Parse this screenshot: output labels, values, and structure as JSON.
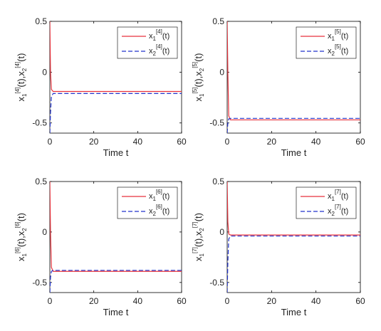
{
  "colors": {
    "x1": "#e8323c",
    "x2": "#2233cc",
    "axis": "#000000",
    "background": "#ffffff"
  },
  "chart_data": [
    {
      "type": "line",
      "agent": "4",
      "xlabel": "Time t",
      "ylabel": {
        "base": "x",
        "sub1": "1",
        "sub2": "2",
        "sup": "[4]",
        "arg": "(t)"
      },
      "xlim": [
        0,
        60
      ],
      "ylim": [
        -0.6,
        0.5
      ],
      "xticks": [
        "0",
        "20",
        "40",
        "60"
      ],
      "yticks": [
        "0.5",
        "0",
        "-0.5"
      ],
      "legend_position": "top-right",
      "series": [
        {
          "key": "x1",
          "style": "solid",
          "legend": {
            "base": "x",
            "sub": "1",
            "sup": "[4]",
            "arg": "(t)"
          },
          "points": [
            [
              0,
              0.5
            ],
            [
              0.3,
              0.0
            ],
            [
              0.7,
              -0.17
            ],
            [
              1.5,
              -0.19
            ],
            [
              60,
              -0.19
            ]
          ]
        },
        {
          "key": "x2",
          "style": "dashed",
          "legend": {
            "base": "x",
            "sub": "2",
            "sup": "[4]",
            "arg": "(t)"
          },
          "points": [
            [
              0,
              -0.6
            ],
            [
              0.3,
              -0.4
            ],
            [
              0.7,
              -0.24
            ],
            [
              1.5,
              -0.21
            ],
            [
              60,
              -0.21
            ]
          ]
        }
      ]
    },
    {
      "type": "line",
      "agent": "5",
      "xlabel": "Time t",
      "ylabel": {
        "base": "x",
        "sub1": "1",
        "sub2": "2",
        "sup": "[5]",
        "arg": "(t)"
      },
      "xlim": [
        0,
        60
      ],
      "ylim": [
        -0.6,
        0.5
      ],
      "xticks": [
        "0",
        "20",
        "40",
        "60"
      ],
      "yticks": [
        "0.5",
        "0",
        "-0.5"
      ],
      "legend_position": "top-right",
      "series": [
        {
          "key": "x1",
          "style": "solid",
          "legend": {
            "base": "x",
            "sub": "1",
            "sup": "[5]",
            "arg": "(t)"
          },
          "points": [
            [
              0,
              0.5
            ],
            [
              0.3,
              0.0
            ],
            [
              0.7,
              -0.43
            ],
            [
              1.5,
              -0.47
            ],
            [
              60,
              -0.47
            ]
          ]
        },
        {
          "key": "x2",
          "style": "dashed",
          "legend": {
            "base": "x",
            "sub": "2",
            "sup": "[5]",
            "arg": "(t)"
          },
          "points": [
            [
              0,
              -0.6
            ],
            [
              0.3,
              -0.5
            ],
            [
              0.7,
              -0.46
            ],
            [
              1.5,
              -0.455
            ],
            [
              60,
              -0.455
            ]
          ]
        }
      ]
    },
    {
      "type": "line",
      "agent": "6",
      "xlabel": "Time t",
      "ylabel": {
        "base": "x",
        "sub1": "1",
        "sub2": "2",
        "sup": "[6]",
        "arg": "(t)"
      },
      "xlim": [
        0,
        60
      ],
      "ylim": [
        -0.6,
        0.5
      ],
      "xticks": [
        "0",
        "20",
        "40",
        "60"
      ],
      "yticks": [
        "0.5",
        "0",
        "-0.5"
      ],
      "legend_position": "top-right",
      "series": [
        {
          "key": "x1",
          "style": "solid",
          "legend": {
            "base": "x",
            "sub": "1",
            "sup": "[6]",
            "arg": "(t)"
          },
          "points": [
            [
              0,
              0.5
            ],
            [
              0.3,
              0.0
            ],
            [
              0.7,
              -0.35
            ],
            [
              1.5,
              -0.39
            ],
            [
              60,
              -0.39
            ]
          ]
        },
        {
          "key": "x2",
          "style": "dashed",
          "legend": {
            "base": "x",
            "sub": "2",
            "sup": "[6]",
            "arg": "(t)"
          },
          "points": [
            [
              0,
              -0.6
            ],
            [
              0.3,
              -0.45
            ],
            [
              0.7,
              -0.39
            ],
            [
              1.5,
              -0.38
            ],
            [
              60,
              -0.38
            ]
          ]
        }
      ]
    },
    {
      "type": "line",
      "agent": "7",
      "xlabel": "Time t",
      "ylabel": {
        "base": "x",
        "sub1": "1",
        "sub2": "2",
        "sup": "[7]",
        "arg": "(t)"
      },
      "xlim": [
        0,
        60
      ],
      "ylim": [
        -0.6,
        0.5
      ],
      "xticks": [
        "0",
        "20",
        "40",
        "60"
      ],
      "yticks": [
        "0.5",
        "0",
        "-0.5"
      ],
      "legend_position": "top-right",
      "series": [
        {
          "key": "x1",
          "style": "solid",
          "legend": {
            "base": "x",
            "sub": "1",
            "sup": "[7]",
            "arg": "(t)"
          },
          "points": [
            [
              0,
              0.5
            ],
            [
              0.3,
              0.1
            ],
            [
              0.7,
              -0.02
            ],
            [
              1.5,
              -0.03
            ],
            [
              60,
              -0.03
            ]
          ]
        },
        {
          "key": "x2",
          "style": "dashed",
          "legend": {
            "base": "x",
            "sub": "2",
            "sup": "[7]",
            "arg": "(t)"
          },
          "points": [
            [
              0,
              -0.6
            ],
            [
              0.3,
              -0.3
            ],
            [
              0.7,
              -0.07
            ],
            [
              1.5,
              -0.04
            ],
            [
              60,
              -0.04
            ]
          ]
        }
      ]
    }
  ]
}
